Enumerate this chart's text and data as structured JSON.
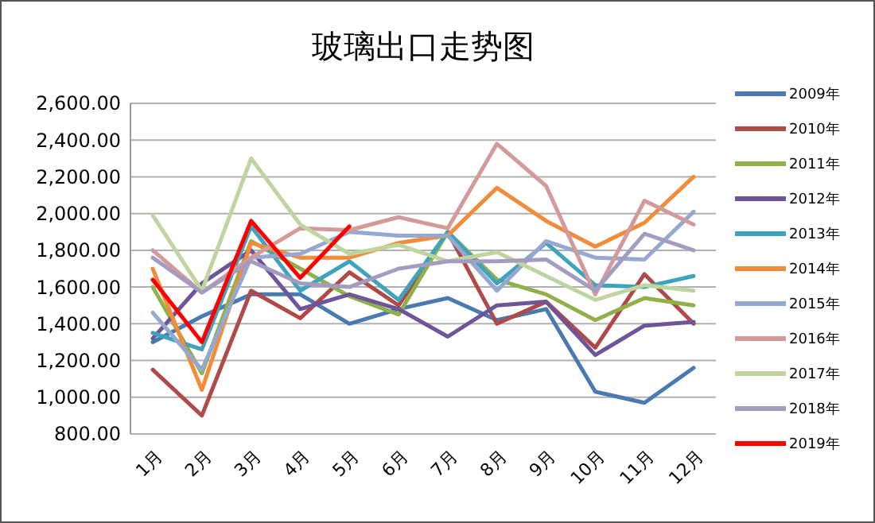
{
  "chart_data": {
    "type": "line",
    "title": "玻璃出口走势图",
    "categories": [
      "1月",
      "2月",
      "3月",
      "4月",
      "5月",
      "6月",
      "7月",
      "8月",
      "9月",
      "10月",
      "11月",
      "12月"
    ],
    "ylim": [
      800,
      2600
    ],
    "yticks": [
      {
        "value": 800,
        "label": "800.00"
      },
      {
        "value": 1000,
        "label": "1,000.00"
      },
      {
        "value": 1200,
        "label": "1,200.00"
      },
      {
        "value": 1400,
        "label": "1,400.00"
      },
      {
        "value": 1600,
        "label": "1,600.00"
      },
      {
        "value": 1800,
        "label": "1,800.00"
      },
      {
        "value": 2000,
        "label": "2,000.00"
      },
      {
        "value": 2200,
        "label": "2,200.00"
      },
      {
        "value": 2400,
        "label": "2,400.00"
      },
      {
        "value": 2600,
        "label": "2,600.00"
      }
    ],
    "grid": "y",
    "legend": "right",
    "marker": "none",
    "line_style": "solid",
    "series": [
      {
        "name": "2009年",
        "color": "#4a7ab0",
        "values": [
          1300,
          1440,
          1560,
          1560,
          1400,
          1480,
          1540,
          1420,
          1480,
          1030,
          970,
          1160
        ]
      },
      {
        "name": "2010年",
        "color": "#b04a48",
        "values": [
          1150,
          900,
          1580,
          1430,
          1680,
          1500,
          1900,
          1400,
          1520,
          1270,
          1670,
          1400
        ]
      },
      {
        "name": "2011年",
        "color": "#8fb04a",
        "values": [
          1600,
          1130,
          1850,
          1700,
          1550,
          1450,
          1900,
          1640,
          1560,
          1420,
          1540,
          1500
        ]
      },
      {
        "name": "2012年",
        "color": "#6e5598",
        "values": [
          1320,
          1620,
          1800,
          1480,
          1560,
          1480,
          1330,
          1500,
          1520,
          1230,
          1390,
          1410
        ]
      },
      {
        "name": "2013年",
        "color": "#3fa3bd",
        "values": [
          1350,
          1260,
          1930,
          1580,
          1740,
          1530,
          1900,
          1620,
          1840,
          1610,
          1600,
          1660
        ]
      },
      {
        "name": "2014年",
        "color": "#f08c3a",
        "values": [
          1700,
          1040,
          1840,
          1760,
          1760,
          1840,
          1880,
          2140,
          1960,
          1820,
          1950,
          2200
        ]
      },
      {
        "name": "2015年",
        "color": "#94a8d0",
        "values": [
          1460,
          1150,
          1760,
          1780,
          1900,
          1880,
          1880,
          1580,
          1850,
          1760,
          1750,
          2010
        ]
      },
      {
        "name": "2016年",
        "color": "#d49a9a",
        "values": [
          1800,
          1570,
          1760,
          1920,
          1910,
          1980,
          1920,
          2380,
          2150,
          1560,
          2070,
          1940
        ]
      },
      {
        "name": "2017年",
        "color": "#c0d4a0",
        "values": [
          1990,
          1580,
          2300,
          1940,
          1780,
          1830,
          1740,
          1790,
          1660,
          1530,
          1610,
          1580
        ]
      },
      {
        "name": "2018年",
        "color": "#a49cc0",
        "values": [
          1760,
          1570,
          1740,
          1620,
          1600,
          1700,
          1740,
          1740,
          1750,
          1580,
          1890,
          1800
        ]
      },
      {
        "name": "2019年",
        "color": "#ff0000",
        "values": [
          1640,
          1300,
          1960,
          1650,
          1930,
          null,
          null,
          null,
          null,
          null,
          null,
          null
        ]
      }
    ]
  }
}
